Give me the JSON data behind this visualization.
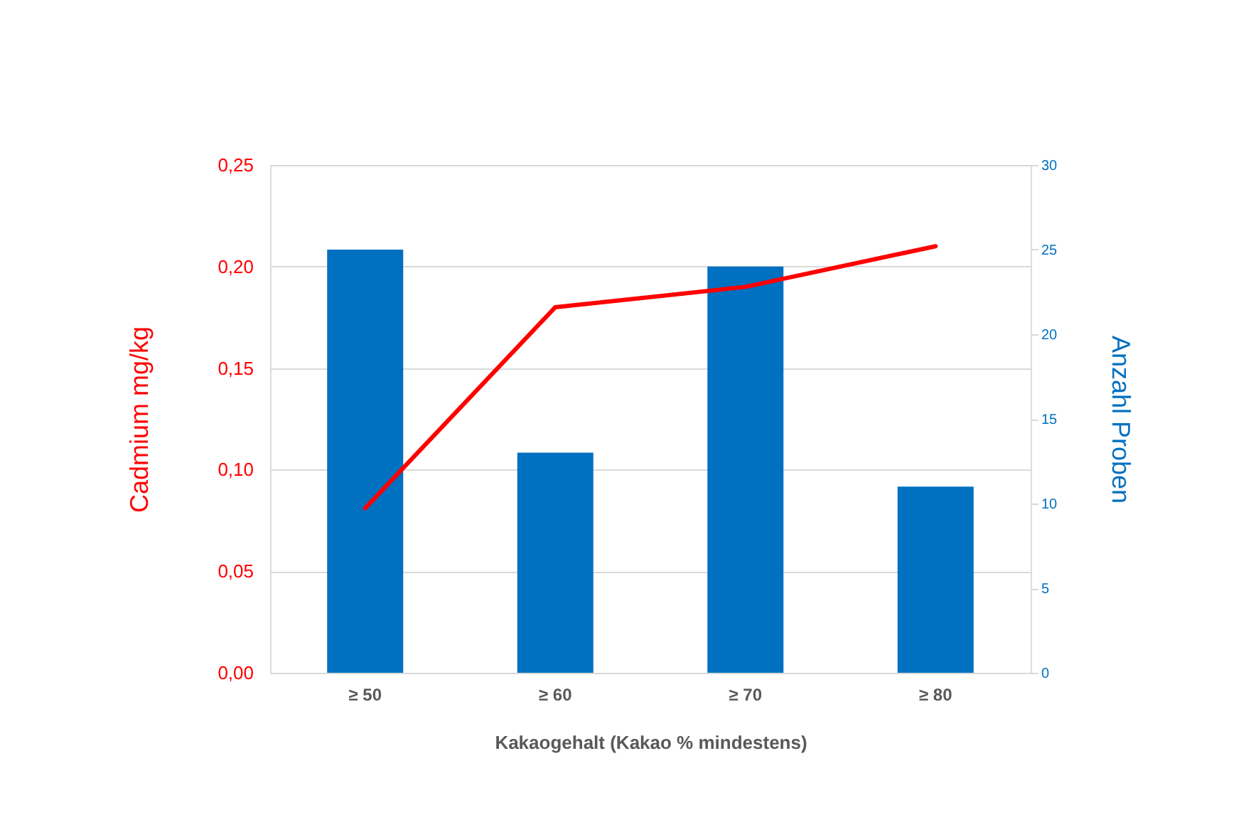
{
  "chart_data": {
    "type": "bar",
    "xlabel": "Kakaogehalt (Kakao % mindestens)",
    "ylabel": "Cadmium mg/kg",
    "y2label": "Anzahl Proben",
    "categories": [
      "≥ 50",
      "≥ 60",
      "≥ 70",
      "≥ 80"
    ],
    "series": [
      {
        "axis": "y2",
        "color": "#0070c0",
        "values": [
          25,
          13,
          24,
          11
        ]
      },
      {
        "type": "line",
        "axis": "y",
        "color": "#ff0000",
        "values": [
          0.081,
          0.18,
          0.19,
          0.21
        ]
      }
    ],
    "ylim": [
      0,
      0.25
    ],
    "yticks": [
      {
        "value": 0,
        "label": "0,00"
      },
      {
        "value": 0.05,
        "label": "0,05"
      },
      {
        "value": 0.1,
        "label": "0,10"
      },
      {
        "value": 0.15,
        "label": "0,15"
      },
      {
        "value": 0.2,
        "label": "0,20"
      },
      {
        "value": 0.25,
        "label": "0,25"
      }
    ],
    "y2lim": [
      0,
      30
    ],
    "y2ticks": [
      0,
      5,
      10,
      15,
      20,
      25,
      30
    ],
    "grid": "y",
    "legend": false,
    "marker": "none",
    "line_style": "solid"
  }
}
